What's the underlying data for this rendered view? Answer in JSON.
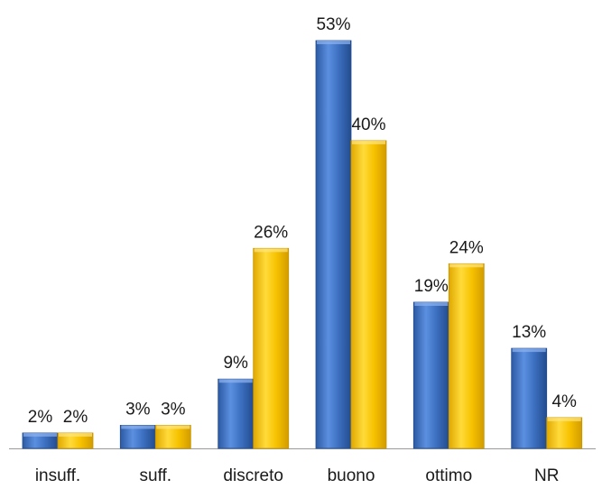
{
  "chart_data": {
    "type": "bar",
    "title": "",
    "xlabel": "",
    "ylabel": "",
    "categories": [
      "insuff.",
      "suff.",
      "discreto",
      "buono",
      "ottimo",
      "NR"
    ],
    "series": [
      {
        "values": [
          2,
          3,
          9,
          53,
          19,
          13
        ],
        "labels": [
          "2%",
          "3%",
          "9%",
          "53%",
          "19%",
          "13%"
        ],
        "color": "#3c6fc0"
      },
      {
        "values": [
          2,
          3,
          26,
          40,
          24,
          4
        ],
        "labels": [
          "2%",
          "3%",
          "26%",
          "40%",
          "24%",
          "4%"
        ],
        "color": "#f7c200"
      }
    ],
    "ylim": [
      0,
      53
    ],
    "grid": false,
    "legend": "none"
  }
}
